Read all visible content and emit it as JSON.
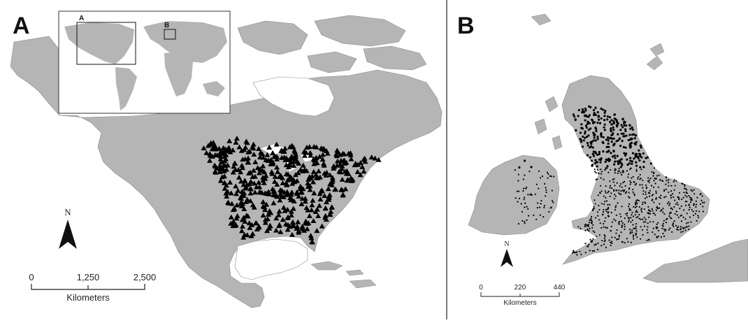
{
  "panel_a": {
    "label": "A",
    "inset": {
      "label_a": "A",
      "label_b": "B"
    },
    "north_label": "N",
    "scale": {
      "ticks": [
        "0",
        "1,250",
        "2,500"
      ],
      "unit": "Kilometers"
    },
    "point_symbol": "triangle"
  },
  "panel_b": {
    "label": "B",
    "north_label": "N",
    "scale": {
      "ticks": [
        "0",
        "220",
        "440"
      ],
      "unit": "Kilometers"
    },
    "point_symbol": "dot"
  },
  "colors": {
    "land": "#b5b5b5",
    "water": "#ffffff",
    "points": "#000000",
    "outline": "#6d6d6d"
  }
}
